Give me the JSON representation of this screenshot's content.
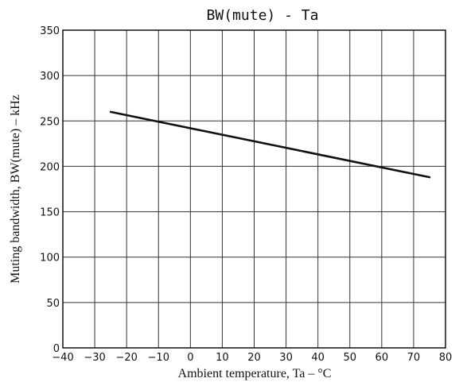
{
  "chart_data": {
    "type": "line",
    "title": "BW(mute) - Ta",
    "xlabel": "Ambient temperature, Ta  –  °C",
    "ylabel": "Muting bandwidth, BW(mute)  –  kHz",
    "xlim": [
      -40,
      80
    ],
    "ylim": [
      0,
      350
    ],
    "x_ticks": [
      -40,
      -30,
      -20,
      -10,
      0,
      10,
      20,
      30,
      40,
      50,
      60,
      70,
      80
    ],
    "x_tick_labels": [
      "−40",
      "−30",
      "−20",
      "−10",
      "0",
      "10",
      "20",
      "30",
      "40",
      "50",
      "60",
      "70",
      "80"
    ],
    "y_ticks": [
      0,
      50,
      100,
      150,
      200,
      250,
      300,
      350
    ],
    "y_tick_labels": [
      "0",
      "50",
      "100",
      "150",
      "200",
      "250",
      "300",
      "350"
    ],
    "grid": true,
    "series": [
      {
        "x": [
          -25,
          75
        ],
        "y": [
          260,
          188
        ]
      }
    ]
  }
}
